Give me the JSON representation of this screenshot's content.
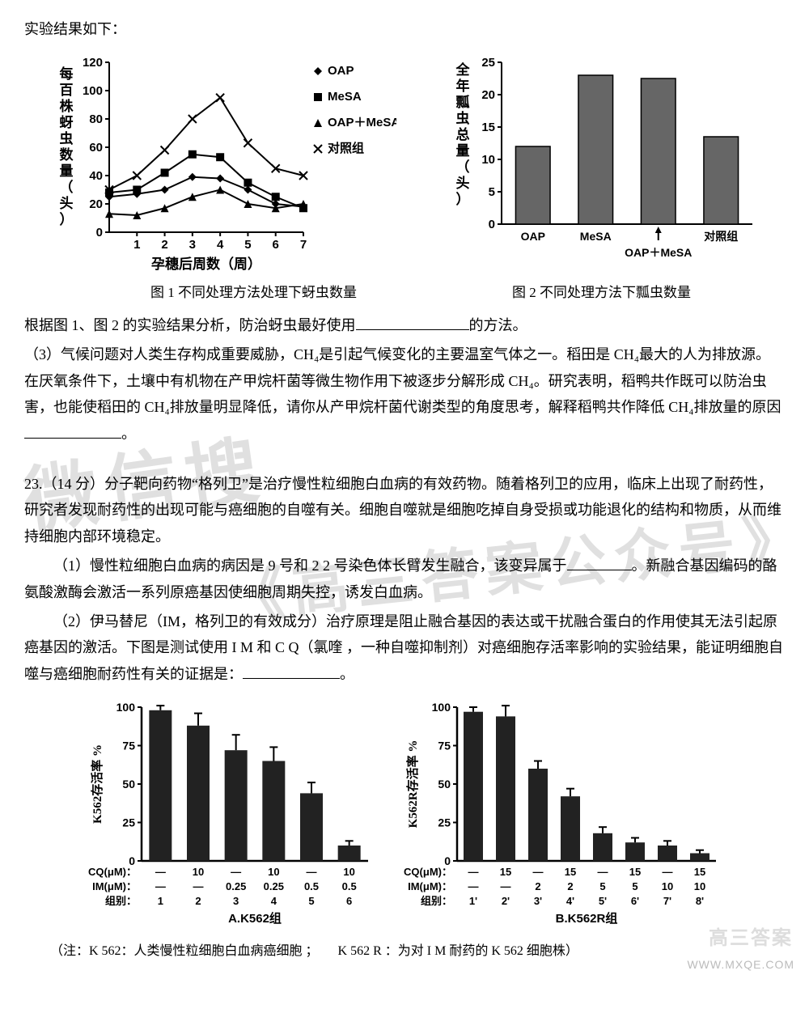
{
  "intro_text": "实验结果如下：",
  "fig1": {
    "type": "line",
    "y_label_vertical": "每百株蚜虫数量（头）",
    "x_label": "孕穗后周数（周）",
    "xticks": [
      1,
      2,
      3,
      4,
      5,
      6,
      7
    ],
    "ylim": [
      0,
      120
    ],
    "ytick_step": 20,
    "series": [
      {
        "name": "OAP",
        "marker": "diamond",
        "values": [
          25,
          27,
          30,
          39,
          38,
          30,
          20,
          18
        ]
      },
      {
        "name": "MeSA",
        "marker": "square",
        "values": [
          28,
          30,
          42,
          55,
          53,
          35,
          25,
          17
        ]
      },
      {
        "name": "OAP＋MeSA",
        "marker": "triangle",
        "values": [
          13,
          12,
          17,
          25,
          30,
          20,
          17,
          20
        ]
      },
      {
        "name": "对照组",
        "marker": "x",
        "values": [
          30,
          40,
          58,
          80,
          95,
          63,
          45,
          40
        ]
      }
    ],
    "line_color": "#000000",
    "marker_size": 5,
    "axis_color": "#000000",
    "background": "#ffffff",
    "title_fontsize": 17,
    "label_fontsize": 16,
    "caption": "图 1 不同处理方法处理下蚜虫数量"
  },
  "fig2": {
    "type": "bar",
    "y_label_vertical": "全年瓢虫总量（头）",
    "categories": [
      "OAP",
      "MeSA",
      "OAP＋MeSA",
      "对照组"
    ],
    "values": [
      12,
      23,
      22.5,
      13.5
    ],
    "ylim": [
      0,
      25
    ],
    "ytick_step": 5,
    "bar_color": "#666666",
    "bar_border": "#000000",
    "axis_color": "#000000",
    "bar_width": 0.55,
    "caption": "图 2 不同处理方法下瓢虫数量",
    "arrow_on_third": true
  },
  "analysis_text_prefix": "根据图 1、图 2 的实验结果分析，防治蚜虫最好使用",
  "analysis_text_suffix": "的方法。",
  "q3_text_part1": "（3）气候问题对人类生存构成重要威胁，CH₄是引起气候变化的主要温室气体之一。稻田是 CH₄最大的人为排放源。在厌氧条件下，土壤中有机物在产甲烷杆菌等微生物作用下被逐步分解形成 CH₄。研究表明，稻鸭共作既可以防治虫害，也能使稻田的 CH₄排放量明显降低，请你从产甲烷杆菌代谢类型的角度思考，解释稻鸭共作降低 CH₄排放量的原因",
  "q3_text_suffix": "。",
  "q23_intro": "23.（14 分）分子靶向药物“格列卫”是治疗慢性粒细胞白血病的有效药物。随着格列卫的应用，临床上出现了耐药性，研究者发现耐药性的出现可能与癌细胞的自噬有关。细胞自噬就是细胞吃掉自身受损或功能退化的结构和物质，从而维持细胞内部环境稳定。",
  "q23_1_prefix": "（1）慢性粒细胞白血病的病因是 9 号和 2 2 号染色体长臂发生融合，该变异属于",
  "q23_1_suffix": "。新融合基因编码的酪氨酸激酶会激活一系列原癌基因使细胞周期失控，诱发白血病。",
  "q23_2_prefix": "（2）伊马替尼（IM，格列卫的有效成分）治疗原理是阻止融合基因的表达或干扰融合蛋白的作用使其无法引起原癌基因的激活。下图是测试使用 I M 和 C Q（氯喹 ，一种自噬抑制剂）对癌细胞存活率影响的实验结果，能证明细胞自噬与癌细胞耐药性有关的证据是：",
  "q23_2_suffix": "。",
  "chartA": {
    "type": "bar-err",
    "title": "A.K562组",
    "y_label": "K562存活率 %",
    "ylim": [
      0,
      100
    ],
    "ytick_step": 25,
    "groups": [
      "1",
      "2",
      "3",
      "4",
      "5",
      "6"
    ],
    "cq_row_label": "CQ(μM)：",
    "im_row_label": "IM(μM)：",
    "group_row_label": "组别：",
    "cq_values": [
      "—",
      "10",
      "—",
      "10",
      "—",
      "10"
    ],
    "im_values": [
      "—",
      "—",
      "0.25",
      "0.25",
      "0.5",
      "0.5"
    ],
    "means": [
      98,
      88,
      72,
      65,
      44,
      10
    ],
    "errors": [
      3,
      8,
      10,
      9,
      7,
      3
    ],
    "bar_color": "#222222",
    "axis_color": "#000000"
  },
  "chartB": {
    "type": "bar-err",
    "title": "B.K562R组",
    "y_label": "K562R存活率 %",
    "ylim": [
      0,
      100
    ],
    "ytick_step": 25,
    "groups": [
      "1'",
      "2'",
      "3'",
      "4'",
      "5'",
      "6'",
      "7'",
      "8'"
    ],
    "cq_row_label": "CQ(μM)：",
    "im_row_label": "IM(μM)：",
    "group_row_label": "组别：",
    "cq_values": [
      "—",
      "15",
      "—",
      "15",
      "—",
      "15",
      "—",
      "15"
    ],
    "im_values": [
      "—",
      "—",
      "2",
      "2",
      "5",
      "5",
      "10",
      "10"
    ],
    "means": [
      97,
      94,
      60,
      42,
      18,
      12,
      10,
      5
    ],
    "errors": [
      3,
      7,
      5,
      5,
      4,
      3,
      3,
      2
    ],
    "bar_color": "#222222",
    "axis_color": "#000000"
  },
  "footnote_text": "（注：K 562：人类慢性粒细胞白血病癌细胞 ；　　K 562 R ：为对 I M 耐药的 K 562 细胞株）",
  "watermark1": "微信搜",
  "watermark2": "《高三答案公众号》",
  "corner_wm": "WWW.MXQE.COM",
  "corner_logo": "高三答案"
}
